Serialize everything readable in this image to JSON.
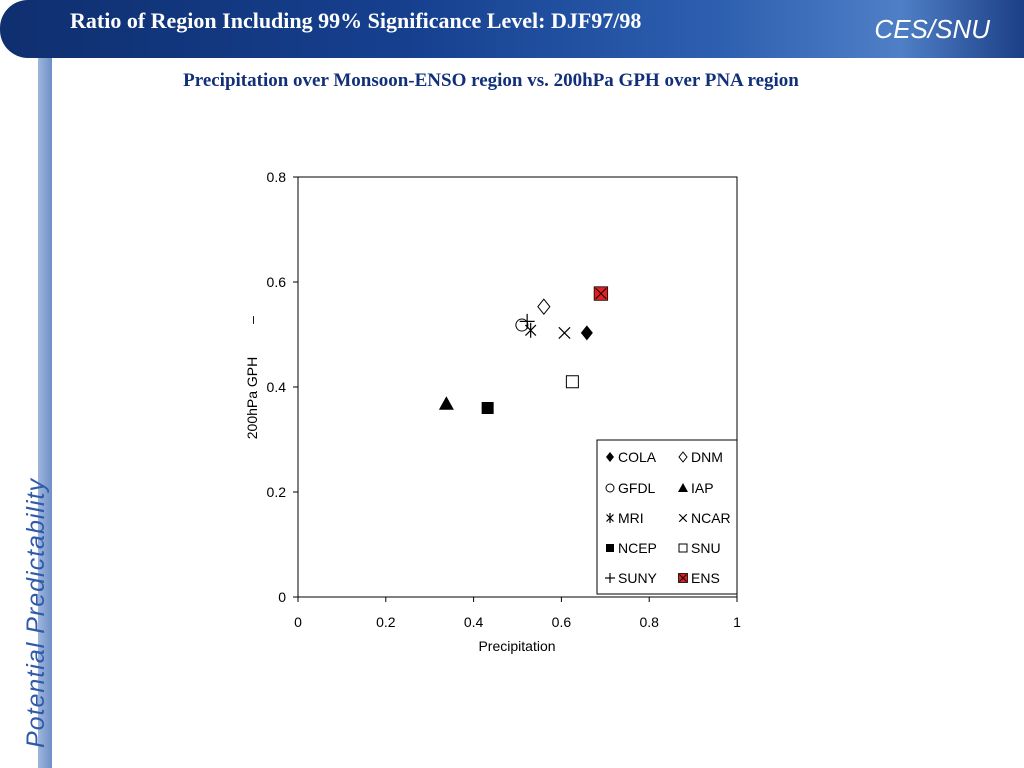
{
  "slide": {
    "title": "Ratio of Region Including 99% Significance Level: DJF97/98",
    "brand": "CES/SNU",
    "side_label": "Potential  Predictability",
    "subtitle": "Precipitation over Monsoon-ENSO region vs. 200hPa GPH over PNA region"
  },
  "colors": {
    "title_bar": "#16408f",
    "subtitle": "#12307a",
    "side_bar": "#7f9fd2",
    "ens_marker": "#e02020"
  },
  "chart_data": {
    "type": "scatter",
    "title": "",
    "xlabel": "Precipitation",
    "ylabel": "200hPa GPH",
    "xlim": [
      0,
      1
    ],
    "ylim": [
      0,
      0.8
    ],
    "xticks": [
      0,
      0.2,
      0.4,
      0.6,
      0.8,
      1
    ],
    "yticks": [
      0,
      0.2,
      0.4,
      0.6,
      0.8
    ],
    "xtick_labels": [
      "0",
      "0.2",
      "0.4",
      "0.6",
      "0.8",
      "1"
    ],
    "ytick_labels": [
      "0",
      "0.2",
      "0.4",
      "0.6",
      "0.8"
    ],
    "grid": false,
    "legend_position": "bottom-right",
    "series": [
      {
        "name": "COLA",
        "marker": "filled-diamond",
        "x": 0.658,
        "y": 0.503
      },
      {
        "name": "DNM",
        "marker": "open-diamond",
        "x": 0.56,
        "y": 0.553
      },
      {
        "name": "GFDL",
        "marker": "open-circle",
        "x": 0.51,
        "y": 0.518
      },
      {
        "name": "IAP",
        "marker": "filled-triangle",
        "x": 0.338,
        "y": 0.368
      },
      {
        "name": "MRI",
        "marker": "asterisk",
        "x": 0.53,
        "y": 0.508
      },
      {
        "name": "NCAR",
        "marker": "cross",
        "x": 0.607,
        "y": 0.503
      },
      {
        "name": "NCEP",
        "marker": "filled-square",
        "x": 0.432,
        "y": 0.36
      },
      {
        "name": "SNU",
        "marker": "open-square",
        "x": 0.625,
        "y": 0.41
      },
      {
        "name": "SUNY",
        "marker": "plus",
        "x": 0.522,
        "y": 0.525
      },
      {
        "name": "ENS",
        "marker": "red-boxed-cross",
        "x": 0.69,
        "y": 0.578
      }
    ]
  }
}
